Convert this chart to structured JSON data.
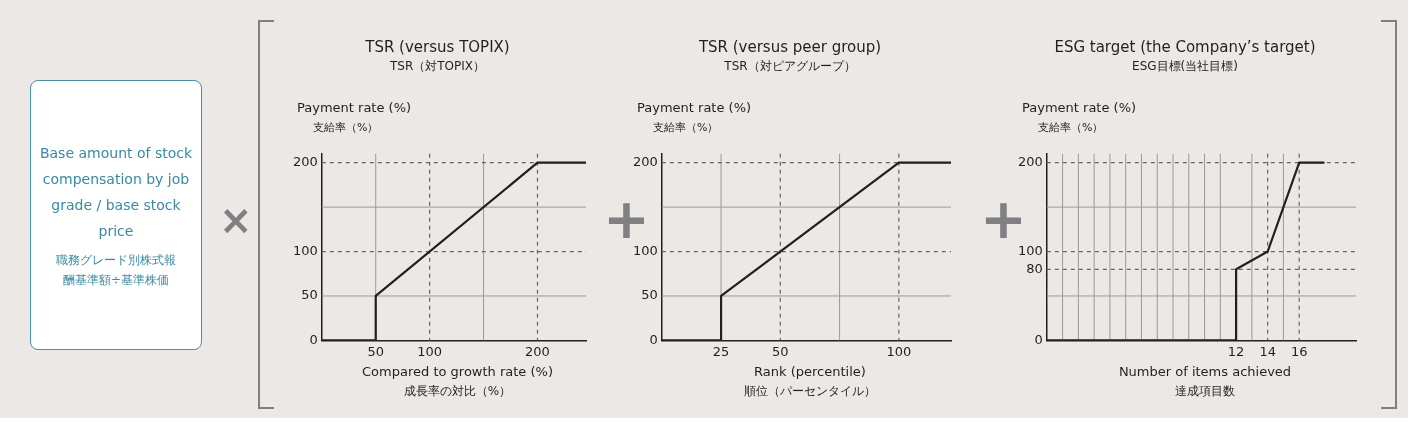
{
  "chart_data": [
    {
      "type": "line",
      "title": "TSR (versus TOPIX)",
      "subtitle": "TSR（対TOPIX）",
      "ylabel": "Payment rate (%)\n支給率（%）",
      "xlabel": "Compared to growth rate (%)\n成長率の対比（%）",
      "marker": "none",
      "x": [
        0,
        50,
        50,
        200,
        245
      ],
      "series": [
        {
          "color": "#231f20",
          "values": [
            0,
            0,
            50,
            200,
            200
          ]
        }
      ],
      "xlim": [
        0,
        245
      ],
      "ylim": [
        0,
        210
      ],
      "xticks": [
        50,
        100,
        200
      ],
      "yticks": [
        0,
        50,
        100,
        200
      ],
      "ref_lines": [
        {
          "axis": "x",
          "value": 50,
          "line_style": "solid",
          "color": "#9a9a9a"
        },
        {
          "axis": "x",
          "value": 100,
          "line_style": "dashed",
          "color": "#666666"
        },
        {
          "axis": "x",
          "value": 150,
          "line_style": "solid",
          "color": "#9a9a9a"
        },
        {
          "axis": "x",
          "value": 200,
          "line_style": "dashed",
          "color": "#666666"
        },
        {
          "axis": "y",
          "value": 50,
          "line_style": "solid",
          "color": "#9a9a9a"
        },
        {
          "axis": "y",
          "value": 100,
          "line_style": "dashed",
          "color": "#666666"
        },
        {
          "axis": "y",
          "value": 150,
          "line_style": "solid",
          "color": "#9a9a9a"
        },
        {
          "axis": "y",
          "value": 200,
          "line_style": "dashed",
          "color": "#666666"
        }
      ]
    },
    {
      "type": "line",
      "title": "TSR (versus peer group)",
      "subtitle": "TSR（対ピアグループ）",
      "ylabel": "Payment rate (%)\n支給率（%）",
      "xlabel": "Rank (percentile)\n順位（パーセンタイル）",
      "marker": "none",
      "x": [
        0,
        25,
        25,
        100,
        122
      ],
      "series": [
        {
          "color": "#231f20",
          "values": [
            0,
            0,
            50,
            200,
            200
          ]
        }
      ],
      "xlim": [
        0,
        122
      ],
      "ylim": [
        0,
        210
      ],
      "xticks": [
        25,
        50,
        100
      ],
      "yticks": [
        0,
        50,
        100,
        200
      ],
      "ref_lines": [
        {
          "axis": "x",
          "value": 25,
          "line_style": "solid",
          "color": "#9a9a9a"
        },
        {
          "axis": "x",
          "value": 50,
          "line_style": "dashed",
          "color": "#666666"
        },
        {
          "axis": "x",
          "value": 75,
          "line_style": "solid",
          "color": "#9a9a9a"
        },
        {
          "axis": "x",
          "value": 100,
          "line_style": "dashed",
          "color": "#666666"
        },
        {
          "axis": "y",
          "value": 50,
          "line_style": "solid",
          "color": "#9a9a9a"
        },
        {
          "axis": "y",
          "value": 100,
          "line_style": "dashed",
          "color": "#666666"
        },
        {
          "axis": "y",
          "value": 150,
          "line_style": "solid",
          "color": "#9a9a9a"
        },
        {
          "axis": "y",
          "value": 200,
          "line_style": "dashed",
          "color": "#666666"
        }
      ]
    },
    {
      "type": "line",
      "title": "ESG target (the Company’s target)",
      "subtitle": "ESG目標(当社目標)",
      "ylabel": "Payment rate (%)\n支給率（%）",
      "xlabel": "Number of items achieved\n達成項目数",
      "marker": "none",
      "x": [
        0,
        12,
        12,
        14,
        16,
        17.6
      ],
      "series": [
        {
          "color": "#231f20",
          "values": [
            0,
            0,
            80,
            100,
            200,
            200
          ]
        }
      ],
      "xlim": [
        0,
        19.6
      ],
      "ylim": [
        0,
        210
      ],
      "xticks": [
        12,
        14,
        16
      ],
      "yticks": [
        0,
        80,
        100,
        200
      ],
      "ref_lines": [
        {
          "axis": "x",
          "value": 1,
          "line_style": "solid",
          "color": "#9a9a9a"
        },
        {
          "axis": "x",
          "value": 2,
          "line_style": "solid",
          "color": "#9a9a9a"
        },
        {
          "axis": "x",
          "value": 3,
          "line_style": "solid",
          "color": "#9a9a9a"
        },
        {
          "axis": "x",
          "value": 4,
          "line_style": "solid",
          "color": "#9a9a9a"
        },
        {
          "axis": "x",
          "value": 5,
          "line_style": "solid",
          "color": "#9a9a9a"
        },
        {
          "axis": "x",
          "value": 6,
          "line_style": "solid",
          "color": "#9a9a9a"
        },
        {
          "axis": "x",
          "value": 7,
          "line_style": "solid",
          "color": "#9a9a9a"
        },
        {
          "axis": "x",
          "value": 8,
          "line_style": "solid",
          "color": "#9a9a9a"
        },
        {
          "axis": "x",
          "value": 9,
          "line_style": "solid",
          "color": "#9a9a9a"
        },
        {
          "axis": "x",
          "value": 10,
          "line_style": "solid",
          "color": "#9a9a9a"
        },
        {
          "axis": "x",
          "value": 11,
          "line_style": "solid",
          "color": "#9a9a9a"
        },
        {
          "axis": "x",
          "value": 13,
          "line_style": "solid",
          "color": "#9a9a9a"
        },
        {
          "axis": "x",
          "value": 14,
          "line_style": "dashed",
          "color": "#666666"
        },
        {
          "axis": "x",
          "value": 15,
          "line_style": "solid",
          "color": "#9a9a9a"
        },
        {
          "axis": "x",
          "value": 16,
          "line_style": "dashed",
          "color": "#666666"
        },
        {
          "axis": "y",
          "value": 50,
          "line_style": "solid",
          "color": "#9a9a9a"
        },
        {
          "axis": "y",
          "value": 80,
          "line_style": "dashed",
          "color": "#666666"
        },
        {
          "axis": "y",
          "value": 100,
          "line_style": "dashed",
          "color": "#666666"
        },
        {
          "axis": "y",
          "value": 150,
          "line_style": "solid",
          "color": "#9a9a9a"
        },
        {
          "axis": "y",
          "value": 200,
          "line_style": "dashed",
          "color": "#666666"
        }
      ]
    },
    {
      "type": "other",
      "title": "Base amount of stock compensation by job grade / base stock price",
      "subtitle": "職務グレード別株式報酬基準額÷基準株価",
      "annotations": [
        "×",
        "+",
        "+"
      ]
    }
  ]
}
